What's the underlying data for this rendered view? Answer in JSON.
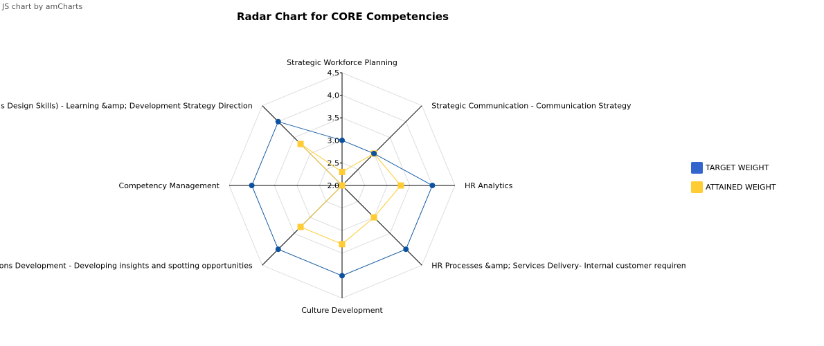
{
  "credit": "JS chart by amCharts",
  "chart_data": {
    "type": "radar",
    "title": "Radar Chart for CORE Competencies",
    "axis_ticks": [
      "2.0",
      "2.5",
      "3.0",
      "3.5",
      "4.0",
      "4.5"
    ],
    "range": [
      2.0,
      4.5
    ],
    "grid": true,
    "legend_position": "right",
    "categories": [
      "Strategic Workforce Planning",
      "Strategic Communication - Communication Strategy",
      "HR Analytics",
      "HR Processes &amp; Services Delivery- Internal customer requirements identification",
      "Culture Development",
      "ons Development - Developing insights and spotting opportunities",
      "Competency Management",
      "s Design Skills) - Learning &amp; Development Strategy Direction"
    ],
    "series": [
      {
        "name": "TARGET WEIGHT",
        "color": "#1a5fa8",
        "legend_color": "#3366cc",
        "marker": "circle",
        "values": [
          3.0,
          3.0,
          4.0,
          4.0,
          4.0,
          4.0,
          4.0,
          4.0
        ]
      },
      {
        "name": "ATTAINED WEIGHT",
        "color": "#ffcc33",
        "legend_color": "#ffcc33",
        "marker": "square",
        "values": [
          2.3,
          3.0,
          3.3,
          3.0,
          3.3,
          3.3,
          2.0,
          3.3
        ]
      }
    ]
  }
}
